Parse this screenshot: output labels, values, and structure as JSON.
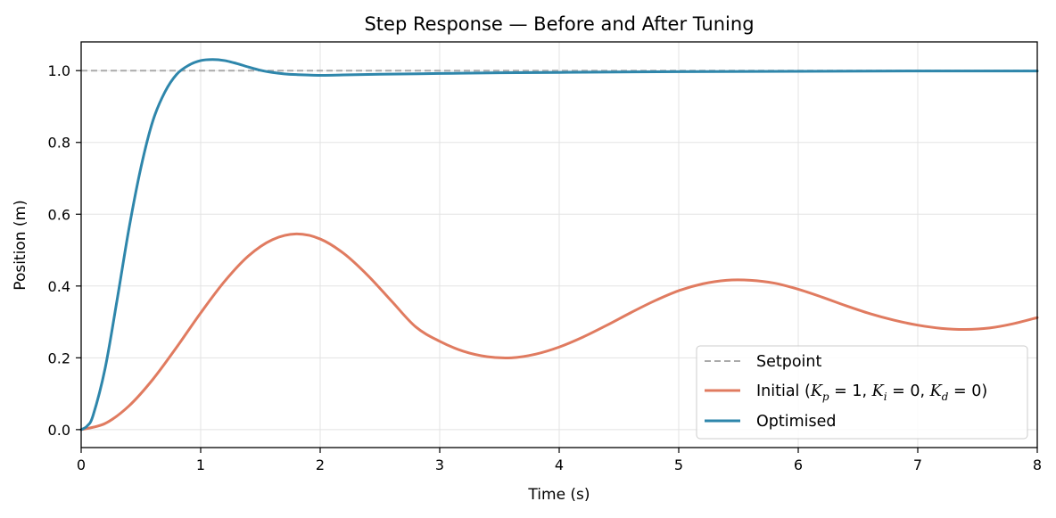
{
  "chart_data": {
    "type": "line",
    "title": "Step Response — Before and After Tuning",
    "xlabel": "Time (s)",
    "ylabel": "Position (m)",
    "xlim": [
      0,
      8
    ],
    "ylim": [
      -0.05,
      1.08
    ],
    "xticks": [
      0,
      1,
      2,
      3,
      4,
      5,
      6,
      7,
      8
    ],
    "yticks": [
      0.0,
      0.2,
      0.4,
      0.6,
      0.8,
      1.0
    ],
    "ytick_labels": [
      "0.0",
      "0.2",
      "0.4",
      "0.6",
      "0.8",
      "1.0"
    ],
    "grid": true,
    "legend_position": "lower-right",
    "series": [
      {
        "name": "Setpoint",
        "style": "dashed",
        "color": "#aaaaaa",
        "x": [
          0,
          8
        ],
        "y": [
          1.0,
          1.0
        ]
      },
      {
        "name": "Initial (Kp = 1, Ki = 0, Kd = 0)",
        "legend_parts": {
          "prefix": "Initial (",
          "k": "K",
          "p": "p",
          "i": "i",
          "d": "d",
          "eq1": " = 1, ",
          "eq2": " = 0, ",
          "eq3": " = 0)"
        },
        "style": "solid",
        "color": "#e07b60",
        "x": [
          0,
          0.2,
          0.4,
          0.6,
          0.8,
          1.0,
          1.2,
          1.4,
          1.6,
          1.8,
          2.0,
          2.2,
          2.4,
          2.6,
          2.8,
          3.0,
          3.2,
          3.4,
          3.6,
          3.8,
          4.0,
          4.2,
          4.4,
          4.6,
          4.8,
          5.0,
          5.2,
          5.4,
          5.6,
          5.8,
          6.0,
          6.2,
          6.4,
          6.6,
          6.8,
          7.0,
          7.2,
          7.4,
          7.6,
          7.8,
          8.0
        ],
        "y": [
          0.0,
          0.017,
          0.066,
          0.14,
          0.23,
          0.325,
          0.413,
          0.484,
          0.529,
          0.545,
          0.531,
          0.49,
          0.429,
          0.357,
          0.286,
          0.246,
          0.218,
          0.203,
          0.2,
          0.21,
          0.23,
          0.258,
          0.291,
          0.326,
          0.359,
          0.387,
          0.406,
          0.416,
          0.416,
          0.408,
          0.391,
          0.369,
          0.345,
          0.323,
          0.305,
          0.291,
          0.282,
          0.279,
          0.283,
          0.295,
          0.312
        ]
      },
      {
        "name": "Optimised",
        "style": "solid",
        "color": "#2e86ab",
        "x": [
          0,
          0.05,
          0.1,
          0.2,
          0.3,
          0.4,
          0.5,
          0.6,
          0.7,
          0.8,
          0.9,
          1.0,
          1.1,
          1.2,
          1.3,
          1.4,
          1.5,
          1.6,
          1.7,
          1.8,
          2.0,
          2.2,
          2.5,
          3.0,
          3.5,
          4.0,
          5.0,
          6.0,
          7.0,
          8.0
        ],
        "y": [
          0.0,
          0.01,
          0.04,
          0.17,
          0.36,
          0.56,
          0.73,
          0.86,
          0.94,
          0.99,
          1.015,
          1.028,
          1.031,
          1.028,
          1.02,
          1.01,
          1.001,
          0.995,
          0.991,
          0.989,
          0.987,
          0.988,
          0.99,
          0.992,
          0.994,
          0.995,
          0.997,
          0.998,
          0.999,
          0.999
        ]
      }
    ]
  }
}
